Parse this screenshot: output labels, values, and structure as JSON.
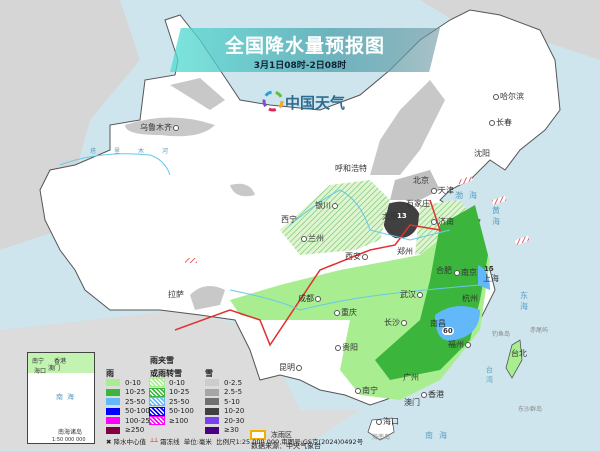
{
  "header": {
    "title": "全国降水量预报图",
    "subtitle": "3月1日08时-2日08时"
  },
  "logo": {
    "text": "中国天气",
    "icon": "pinwheel-logo-icon"
  },
  "cities": [
    "乌鲁木齐",
    "哈尔滨",
    "长春",
    "沈阳",
    "呼和浩特",
    "北京",
    "天津",
    "石家庄",
    "太原",
    "济南",
    "银川",
    "西宁",
    "兰州",
    "西安",
    "郑州",
    "合肥",
    "南京",
    "上海",
    "武汉",
    "杭州",
    "成都",
    "重庆",
    "长沙",
    "南昌",
    "拉萨",
    "贵阳",
    "福州",
    "台北",
    "昆明",
    "南宁",
    "广州",
    "香港",
    "澳门",
    "海口"
  ],
  "seas": [
    "渤海",
    "黄海",
    "东海",
    "南海",
    "台湾"
  ],
  "islands": [
    "钓鱼岛",
    "赤尾屿",
    "东沙群岛",
    "海南岛"
  ],
  "rivers": [
    "塔里木河"
  ],
  "center_values": [
    "13",
    "15",
    "60"
  ],
  "inset": {
    "title": "南海诸岛",
    "scale": "1:50 000 000",
    "labels": [
      "南宁",
      "香港",
      "海口",
      "澳门",
      "南海"
    ]
  },
  "legend": {
    "rain": {
      "title": "雨",
      "items": [
        {
          "label": "0-10",
          "color": "#a8ee90"
        },
        {
          "label": "10-25",
          "color": "#3cb53c"
        },
        {
          "label": "25-50",
          "color": "#62b8f8"
        },
        {
          "label": "50-100",
          "color": "#0000fe"
        },
        {
          "label": "100-250",
          "color": "#fe00fe"
        },
        {
          "label": "≥250",
          "color": "#800040"
        }
      ]
    },
    "mixed": {
      "title_line1": "雨夹雪",
      "title_line2": "或雨转雪",
      "items": [
        {
          "label": "0-10",
          "color": "#a8ee90"
        },
        {
          "label": "10-25",
          "color": "#3cb53c"
        },
        {
          "label": "25-50",
          "color": "#62b8f8"
        },
        {
          "label": "50-100",
          "color": "#0000fe"
        },
        {
          "label": "≥100",
          "color": "#fe00fe"
        }
      ]
    },
    "snow": {
      "title": "雪",
      "items": [
        {
          "label": "0-2.5",
          "color": "#cccccc"
        },
        {
          "label": "2.5-5",
          "color": "#a6a6a6"
        },
        {
          "label": "5-10",
          "color": "#707070"
        },
        {
          "label": "10-20",
          "color": "#404040"
        },
        {
          "label": "20-30",
          "color": "#7a40f0"
        },
        {
          "label": "≥30",
          "color": "#4a0080"
        }
      ]
    },
    "freezing_rain": "冻雨区",
    "source": "数据来源：中央气象台",
    "center_marker": "降水中心值",
    "frost_line": "霜冻线",
    "unit": "单位:毫米",
    "scale": "比例尺1:25 000 000",
    "review_no": "审图号:GS京(2024)0492号"
  },
  "colors": {
    "sea": "#cfe5ee",
    "land": "#ffffff",
    "frost_line": "#e03030",
    "freezing_rain": "#f0b000"
  }
}
